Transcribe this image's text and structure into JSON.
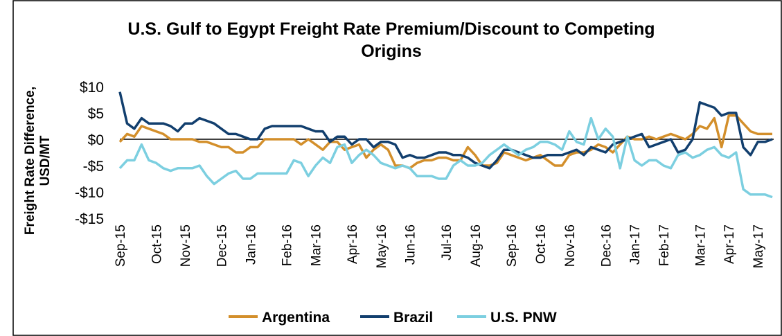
{
  "chart_data": {
    "type": "line",
    "title": "U.S. Gulf to Egypt Freight Rate Premium/Discount to Competing Origins",
    "y_label": "Freight Rate Difference, USD/MT",
    "categories": [
      "Sep-15",
      null,
      null,
      null,
      null,
      "Oct-15",
      null,
      null,
      null,
      "Nov-15",
      null,
      null,
      null,
      null,
      "Dec-15",
      null,
      null,
      null,
      "Jan-16",
      null,
      null,
      null,
      null,
      "Feb-16",
      null,
      null,
      null,
      "Mar-16",
      null,
      null,
      null,
      null,
      "Apr-16",
      null,
      null,
      null,
      "May-16",
      null,
      null,
      null,
      "Jun-16",
      null,
      null,
      null,
      null,
      "Jul-16",
      null,
      null,
      null,
      "Aug-16",
      null,
      null,
      null,
      null,
      "Sep-16",
      null,
      null,
      null,
      "Oct-16",
      null,
      null,
      null,
      "Nov-16",
      null,
      null,
      null,
      null,
      "Dec-16",
      null,
      null,
      null,
      "Jan-17",
      null,
      null,
      null,
      "Feb-17",
      null,
      null,
      null,
      null,
      "Mar-17",
      null,
      null,
      null,
      "Apr-17",
      null,
      null,
      null,
      "May-17",
      null,
      null
    ],
    "series": [
      {
        "name": "Argentina",
        "color": "#d38f2b",
        "values": [
          -0.5,
          1,
          0.5,
          2.5,
          2,
          1.5,
          1,
          0,
          0,
          0,
          0,
          -0.5,
          -0.5,
          -1,
          -1.5,
          -1.5,
          -2.5,
          -2.5,
          -1.5,
          -1.5,
          0,
          0,
          0,
          0,
          0,
          -1,
          0,
          -1,
          -2,
          -0.5,
          -0.5,
          -2,
          -1.5,
          -1,
          -3.5,
          -2,
          -1,
          -2,
          -5,
          -5,
          -5.5,
          -4.5,
          -4,
          -4,
          -3.5,
          -3.5,
          -4,
          -4,
          -1.5,
          -3,
          -5,
          -5,
          -4.5,
          -2.5,
          -3,
          -3.5,
          -4,
          -3.5,
          -3,
          -4,
          -5,
          -5,
          -3,
          -2.5,
          -2.5,
          -2,
          -1,
          -1.5,
          -2.5,
          -1,
          0.5,
          0,
          0,
          0.5,
          0,
          0.5,
          1,
          0.5,
          0,
          1,
          2.5,
          2,
          4,
          -1.5,
          4.5,
          4.5,
          3,
          1.5,
          1,
          1,
          1
        ]
      },
      {
        "name": "Brazil",
        "color": "#123f6e",
        "values": [
          9,
          3,
          2,
          4,
          3,
          3,
          3,
          2.5,
          1.5,
          3,
          3,
          4,
          3.5,
          3,
          2,
          1,
          1,
          0.5,
          0,
          0,
          2,
          2.5,
          2.5,
          2.5,
          2.5,
          2.5,
          2,
          1.5,
          1.5,
          -0.5,
          0.5,
          0.5,
          -1,
          0,
          0,
          -1.5,
          -0.5,
          -0.5,
          -1,
          -3.5,
          -3,
          -3.5,
          -3.5,
          -3,
          -2.5,
          -2.5,
          -3,
          -3,
          -3.5,
          -4.5,
          -5,
          -5.5,
          -4,
          -2,
          -2,
          -2.5,
          -3,
          -3.5,
          -3.5,
          -3,
          -3,
          -3,
          -2.5,
          -2,
          -3,
          -1.5,
          -2,
          -2.5,
          -1,
          -0.5,
          0,
          0.5,
          1,
          -1.5,
          -1,
          -0.5,
          0,
          -2.5,
          -2,
          0,
          7,
          6.5,
          6,
          4.5,
          5,
          5,
          -1.5,
          -3,
          -0.5,
          -0.5,
          0
        ]
      },
      {
        "name": "U.S. PNW",
        "color": "#7ccfe0",
        "values": [
          -5.5,
          -4,
          -4,
          -1,
          -4,
          -4.5,
          -5.5,
          -6,
          -5.5,
          -5.5,
          -5.5,
          -5,
          -7,
          -8.5,
          -7.5,
          -6.5,
          -6,
          -7.5,
          -7.5,
          -6.5,
          -6.5,
          -6.5,
          -6.5,
          -6.5,
          -4,
          -4.5,
          -7,
          -5,
          -3.5,
          -4.5,
          -1.5,
          -1,
          -4.5,
          -3,
          -2,
          -3,
          -4.5,
          -5,
          -5.5,
          -5,
          -5.5,
          -7,
          -7,
          -7,
          -7.5,
          -7.5,
          -5,
          -4,
          -5,
          -5,
          -4.5,
          -3,
          -2,
          -1,
          -2,
          -3,
          -2,
          -1.5,
          -0.5,
          -0.5,
          -1,
          -2,
          1.5,
          -0.5,
          -1,
          4,
          0,
          2,
          0.5,
          -5.5,
          0.5,
          -4,
          -5,
          -4,
          -4,
          -5,
          -5.5,
          -3,
          -2.5,
          -3.5,
          -3,
          -2,
          -1.5,
          -3,
          -3.5,
          -2.5,
          -9.5,
          -10.5,
          -10.5,
          -10.5,
          -11
        ]
      }
    ],
    "ylim": [
      -15,
      10
    ],
    "yticks": [
      {
        "value": -15,
        "label": "-$15"
      },
      {
        "value": -10,
        "label": "-$10"
      },
      {
        "value": -5,
        "label": "-$5"
      },
      {
        "value": 0,
        "label": "$0"
      },
      {
        "value": 5,
        "label": "$5"
      },
      {
        "value": 10,
        "label": "$10"
      }
    ],
    "zero_line": true,
    "legend": "bottom"
  }
}
